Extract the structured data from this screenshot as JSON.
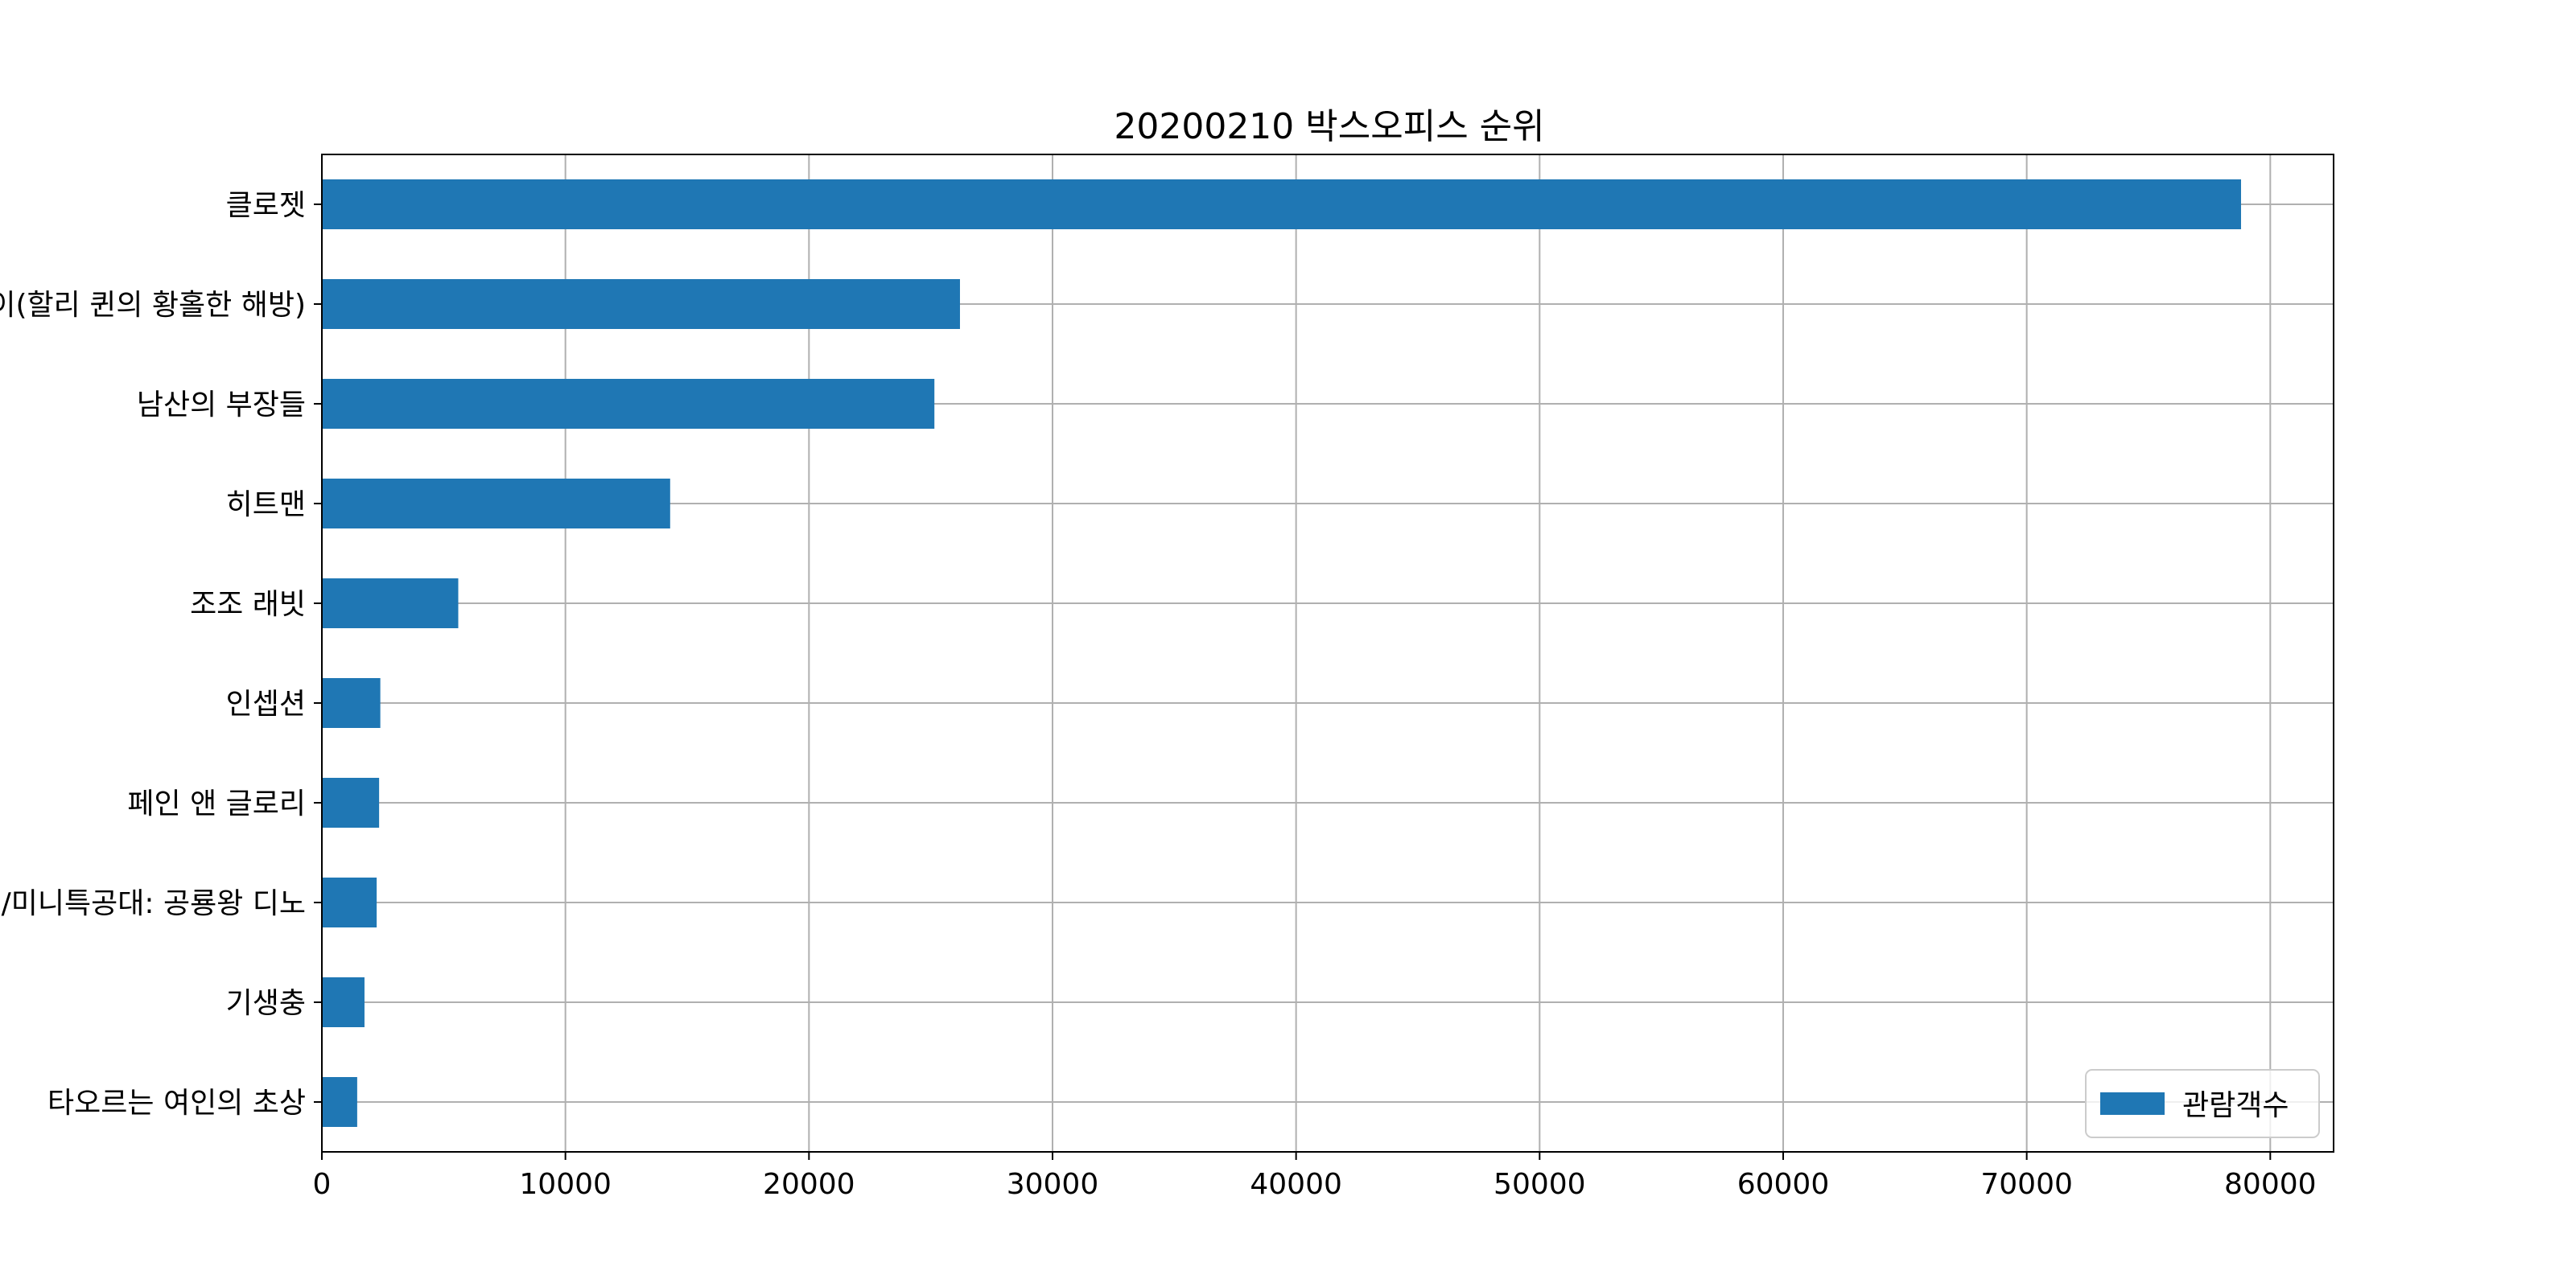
{
  "chart_data": {
    "type": "bar",
    "orientation": "horizontal",
    "title": "20200210 박스오피스 순위",
    "xlabel": "",
    "ylabel": "",
    "xlim": [
      0,
      82600
    ],
    "xticks": [
      0,
      10000,
      20000,
      30000,
      40000,
      50000,
      60000,
      70000,
      80000
    ],
    "grid": true,
    "legend": {
      "position": "lower-right"
    },
    "categories": [
      "클로젯",
      "버즈 오브 프레이(할리 퀸의 황홀한 해방)",
      "남산의 부장들",
      "히트맨",
      "조조 래빗",
      "인셉션",
      "페인 앤 글로리",
      "극장판 공룡메카드: 타이니소어의 섬/뽀로로 극장판 보물섬 대모험/미니특공대: 공룡왕 디노",
      "기생충",
      "타오르는 여인의 초상"
    ],
    "series": [
      {
        "name": "관람객수",
        "color": "#1f77b4",
        "values": [
          78800,
          26200,
          25150,
          14300,
          5600,
          2400,
          2350,
          2250,
          1750,
          1450
        ]
      }
    ]
  }
}
